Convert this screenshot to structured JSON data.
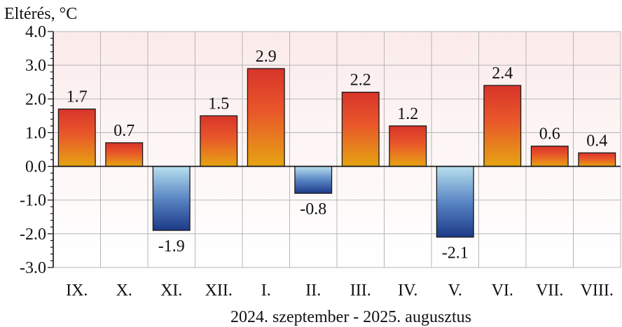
{
  "chart_data": {
    "type": "bar",
    "ylabel": "Eltérés, °C",
    "xlabel": "2024. szeptember - 2025. augusztus",
    "categories": [
      "IX.",
      "X.",
      "XI.",
      "XII.",
      "I.",
      "II.",
      "III.",
      "IV.",
      "V.",
      "VI.",
      "VII.",
      "VIII."
    ],
    "values": [
      1.7,
      0.7,
      -1.9,
      1.5,
      2.9,
      -0.8,
      2.2,
      1.2,
      -2.1,
      2.4,
      0.6,
      0.4
    ],
    "data_labels": [
      "1.7",
      "0.7",
      "-1.9",
      "1.5",
      "2.9",
      "-0.8",
      "2.2",
      "1.2",
      "-2.1",
      "2.4",
      "0.6",
      "0.4"
    ],
    "ylim": [
      -3.0,
      4.0
    ],
    "yticks": [
      4.0,
      3.0,
      2.0,
      1.0,
      0.0,
      -1.0,
      -2.0,
      -3.0
    ],
    "ytick_labels": [
      "4.0",
      "3.0",
      "2.0",
      "1.0",
      "0.0",
      "-1.0",
      "-2.0",
      "-3.0"
    ],
    "grid": true,
    "legend": "none",
    "colors": {
      "positive_top": "#d8342a",
      "positive_mid": "#e9582a",
      "positive_bottom": "#e6a412",
      "negative_top": "#b8e0ee",
      "negative_mid": "#5a86c4",
      "negative_bottom": "#1c3a88",
      "grid": "#b5b5b5",
      "bar_outline": "#1a1a1a"
    }
  }
}
